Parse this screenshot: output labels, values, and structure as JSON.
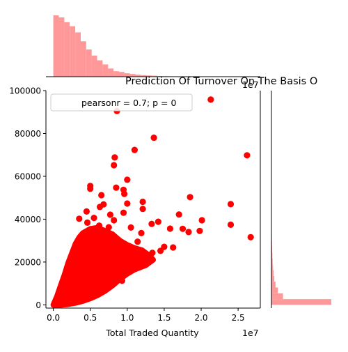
{
  "chart_data": {
    "type": "scatter",
    "title": "Prediction Of Turnover On The Basis O",
    "xlabel": "Total Traded Quantity",
    "ylabel": "",
    "x_multiplier_label": "1e7",
    "top_multiplier_label": "1e7",
    "xlim": [
      -0.1,
      2.8
    ],
    "ylim": [
      -1500,
      100000
    ],
    "x_units_note": "x values are in units of 1e7",
    "xticks": [
      0,
      0.5,
      1.0,
      1.5,
      2.0,
      2.5
    ],
    "xtick_labels": [
      "0.0",
      "0.5",
      "1.0",
      "1.5",
      "2.0",
      "2.5"
    ],
    "yticks": [
      0,
      20000,
      40000,
      60000,
      80000,
      100000
    ],
    "ytick_labels": [
      "0",
      "20000",
      "40000",
      "60000",
      "80000",
      "100000"
    ],
    "legend": {
      "text": "pearsonr = 0.7; p = 0",
      "position": "top-left"
    },
    "grid": false,
    "colors": {
      "points": "#ff0000",
      "histogram": "#ff9999"
    },
    "series": [
      {
        "points": [
          [
            0.86,
            90500
          ],
          [
            2.13,
            95800
          ],
          [
            1.36,
            78000
          ],
          [
            1.1,
            72300
          ],
          [
            2.62,
            69800
          ],
          [
            0.83,
            68800
          ],
          [
            0.82,
            65200
          ],
          [
            1.0,
            58400
          ],
          [
            0.5,
            55500
          ],
          [
            0.5,
            54200
          ],
          [
            0.95,
            53700
          ],
          [
            0.96,
            51800
          ],
          [
            0.65,
            51200
          ],
          [
            0.85,
            54700
          ],
          [
            1.85,
            50300
          ],
          [
            2.4,
            47000
          ],
          [
            1.21,
            48100
          ],
          [
            1.0,
            47300
          ],
          [
            0.68,
            46900
          ],
          [
            0.63,
            45700
          ],
          [
            1.21,
            44800
          ],
          [
            1.7,
            42200
          ],
          [
            0.95,
            43000
          ],
          [
            0.77,
            42100
          ],
          [
            2.01,
            39500
          ],
          [
            1.42,
            38800
          ],
          [
            2.4,
            37400
          ],
          [
            1.58,
            35600
          ],
          [
            1.75,
            35500
          ],
          [
            1.98,
            34500
          ],
          [
            1.83,
            34000
          ],
          [
            2.67,
            31600
          ],
          [
            1.33,
            37800
          ],
          [
            1.19,
            33500
          ],
          [
            1.05,
            36100
          ],
          [
            0.45,
            43600
          ],
          [
            0.55,
            40600
          ],
          [
            0.35,
            40200
          ],
          [
            0.82,
            39500
          ],
          [
            0.46,
            38400
          ],
          [
            0.62,
            37000
          ],
          [
            0.75,
            36200
          ],
          [
            1.14,
            29500
          ],
          [
            1.5,
            27100
          ],
          [
            1.62,
            26800
          ],
          [
            1.45,
            25200
          ],
          [
            1.34,
            24300
          ],
          [
            1.29,
            22400
          ],
          [
            1.27,
            19600
          ],
          [
            1.16,
            17500
          ],
          [
            0.98,
            15400
          ],
          [
            0.93,
            11300
          ],
          [
            0.71,
            7400
          ],
          [
            0.31,
            2700
          ],
          [
            0.18,
            1400
          ],
          [
            0.09,
            600
          ],
          [
            0.05,
            300
          ],
          [
            0.02,
            100
          ]
        ],
        "cloud": [
          [
            0.0,
            0
          ],
          [
            0.05,
            4000
          ],
          [
            0.1,
            9000
          ],
          [
            0.15,
            14000
          ],
          [
            0.2,
            19500
          ],
          [
            0.25,
            24000
          ],
          [
            0.3,
            28500
          ],
          [
            0.35,
            31500
          ],
          [
            0.4,
            33500
          ],
          [
            0.5,
            35500
          ],
          [
            0.6,
            36000
          ],
          [
            0.7,
            34500
          ],
          [
            0.8,
            33000
          ],
          [
            0.9,
            30000
          ],
          [
            1.0,
            28000
          ],
          [
            1.1,
            26500
          ],
          [
            1.2,
            25500
          ],
          [
            1.3,
            23000
          ],
          [
            1.35,
            21000
          ],
          [
            1.25,
            18500
          ],
          [
            1.1,
            16500
          ],
          [
            1.0,
            14500
          ],
          [
            0.9,
            12000
          ],
          [
            0.8,
            9000
          ],
          [
            0.7,
            6500
          ],
          [
            0.6,
            4500
          ],
          [
            0.5,
            3000
          ],
          [
            0.4,
            1800
          ],
          [
            0.3,
            900
          ],
          [
            0.2,
            300
          ],
          [
            0.1,
            0
          ]
        ]
      }
    ],
    "x_marginal": {
      "bin_width": 0.074,
      "start": 0.0,
      "counts": [
        900,
        870,
        800,
        740,
        650,
        520,
        400,
        310,
        240,
        180,
        120,
        80,
        70,
        50,
        40,
        30,
        22,
        18,
        14,
        10,
        8,
        6,
        5,
        4,
        3,
        3,
        2,
        2,
        2,
        1,
        1,
        1,
        1,
        1,
        1
      ]
    },
    "y_marginal": {
      "bin_width": 2700,
      "start": 0,
      "counts": [
        880,
        170,
        95,
        60,
        42,
        32,
        24,
        18,
        14,
        10,
        8,
        6,
        4,
        3,
        2,
        1
      ]
    }
  }
}
